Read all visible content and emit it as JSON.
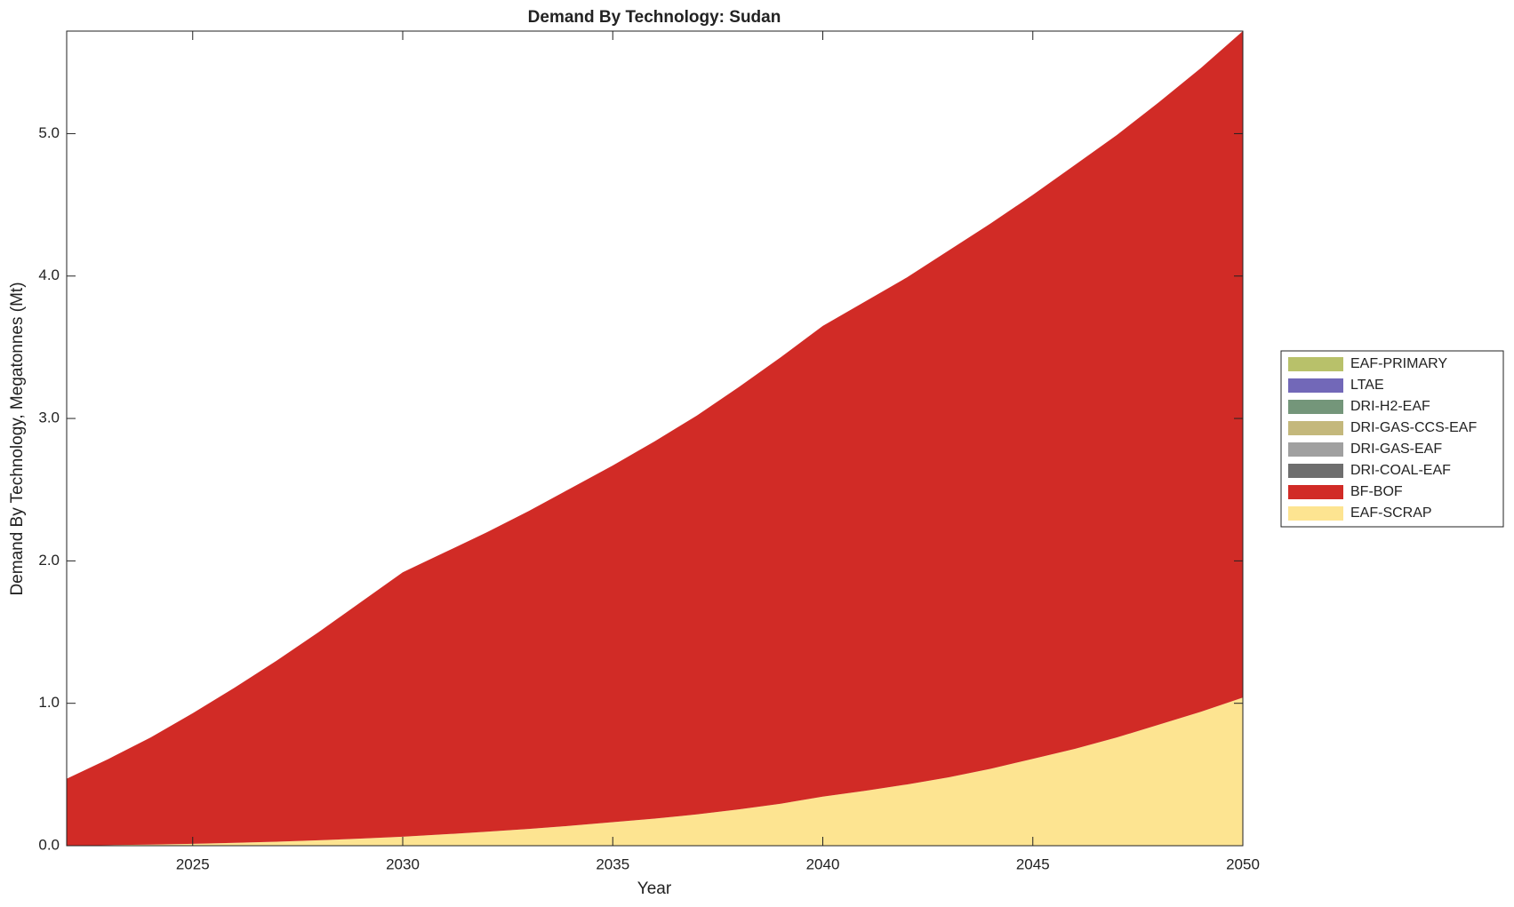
{
  "chart_data": {
    "type": "stacked_area",
    "title": "Demand By Technology: Sudan",
    "xlabel": "Year",
    "ylabel": "Demand By Technology, Megatonnes (Mt)",
    "x": [
      2022,
      2023,
      2024,
      2025,
      2026,
      2027,
      2028,
      2029,
      2030,
      2031,
      2032,
      2033,
      2034,
      2035,
      2036,
      2037,
      2038,
      2039,
      2040,
      2041,
      2042,
      2043,
      2044,
      2045,
      2046,
      2047,
      2048,
      2049,
      2050
    ],
    "series": [
      {
        "name": "EAF-SCRAP",
        "color": "#fde491",
        "values": [
          0,
          0.004,
          0.008,
          0.013,
          0.02,
          0.028,
          0.038,
          0.05,
          0.063,
          0.08,
          0.098,
          0.118,
          0.14,
          0.165,
          0.19,
          0.22,
          0.255,
          0.295,
          0.345,
          0.385,
          0.43,
          0.48,
          0.54,
          0.61,
          0.68,
          0.76,
          0.85,
          0.94,
          1.04
        ]
      },
      {
        "name": "BF-BOF",
        "color": "#d12b26",
        "values": [
          0.47,
          0.606,
          0.752,
          0.917,
          1.09,
          1.272,
          1.462,
          1.66,
          1.857,
          1.98,
          2.102,
          2.232,
          2.37,
          2.505,
          2.65,
          2.8,
          2.965,
          3.135,
          3.305,
          3.435,
          3.56,
          3.7,
          3.83,
          3.96,
          4.1,
          4.23,
          4.37,
          4.52,
          4.68
        ]
      },
      {
        "name": "DRI-COAL-EAF",
        "color": "#6e6e6e",
        "values": [
          0,
          0,
          0,
          0,
          0,
          0,
          0,
          0,
          0,
          0,
          0,
          0,
          0,
          0,
          0,
          0,
          0,
          0,
          0,
          0,
          0,
          0,
          0,
          0,
          0,
          0,
          0,
          0,
          0
        ]
      },
      {
        "name": "DRI-GAS-EAF",
        "color": "#a0a0a0",
        "values": [
          0,
          0,
          0,
          0,
          0,
          0,
          0,
          0,
          0,
          0,
          0,
          0,
          0,
          0,
          0,
          0,
          0,
          0,
          0,
          0,
          0,
          0,
          0,
          0,
          0,
          0,
          0,
          0,
          0
        ]
      },
      {
        "name": "DRI-GAS-CCS-EAF",
        "color": "#c4b87c",
        "values": [
          0,
          0,
          0,
          0,
          0,
          0,
          0,
          0,
          0,
          0,
          0,
          0,
          0,
          0,
          0,
          0,
          0,
          0,
          0,
          0,
          0,
          0,
          0,
          0,
          0,
          0,
          0,
          0,
          0
        ]
      },
      {
        "name": "DRI-H2-EAF",
        "color": "#74967a",
        "values": [
          0,
          0,
          0,
          0,
          0,
          0,
          0,
          0,
          0,
          0,
          0,
          0,
          0,
          0,
          0,
          0,
          0,
          0,
          0,
          0,
          0,
          0,
          0,
          0,
          0,
          0,
          0,
          0,
          0
        ]
      },
      {
        "name": "LTAE",
        "color": "#7268b8",
        "values": [
          0,
          0,
          0,
          0,
          0,
          0,
          0,
          0,
          0,
          0,
          0,
          0,
          0,
          0,
          0,
          0,
          0,
          0,
          0,
          0,
          0,
          0,
          0,
          0,
          0,
          0,
          0,
          0,
          0
        ]
      },
      {
        "name": "EAF-PRIMARY",
        "color": "#b8c16a",
        "values": [
          0,
          0,
          0,
          0,
          0,
          0,
          0,
          0,
          0,
          0,
          0,
          0,
          0,
          0,
          0,
          0,
          0,
          0,
          0,
          0,
          0,
          0,
          0,
          0,
          0,
          0,
          0,
          0,
          0
        ]
      }
    ],
    "xlim": [
      2022,
      2050
    ],
    "xticks": [
      2025,
      2030,
      2035,
      2040,
      2045,
      2050
    ],
    "ylim": [
      0,
      5.72
    ],
    "yticks": [
      {
        "value": 0,
        "label": "0.0"
      },
      {
        "value": 1,
        "label": "1.0"
      },
      {
        "value": 2,
        "label": "2.0"
      },
      {
        "value": 3,
        "label": "3.0"
      },
      {
        "value": 4,
        "label": "4.0"
      },
      {
        "value": 5,
        "label": "5.0"
      }
    ],
    "legend": "right"
  }
}
